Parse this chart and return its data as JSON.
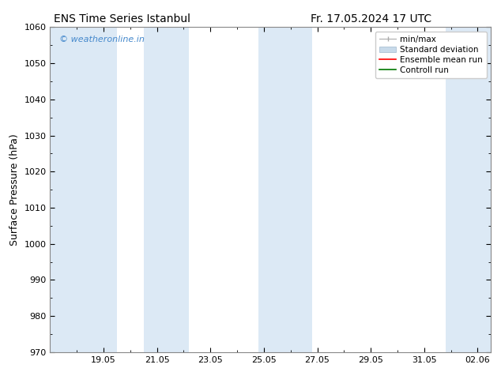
{
  "title1": "ENS Time Series Istanbul",
  "title2": "Fr. 17.05.2024 17 UTC",
  "ylabel": "Surface Pressure (hPa)",
  "ylim": [
    970,
    1060
  ],
  "yticks": [
    970,
    980,
    990,
    1000,
    1010,
    1020,
    1030,
    1040,
    1050,
    1060
  ],
  "xlim": [
    0,
    16.5
  ],
  "xtick_labels": [
    "19.05",
    "21.05",
    "23.05",
    "25.05",
    "27.05",
    "29.05",
    "31.05",
    "02.06"
  ],
  "xtick_positions": [
    2,
    4,
    6,
    8,
    10,
    12,
    14,
    16
  ],
  "shaded_bands": [
    {
      "x_start": 0.0,
      "x_end": 2.5
    },
    {
      "x_start": 3.5,
      "x_end": 5.2
    },
    {
      "x_start": 7.8,
      "x_end": 9.8
    },
    {
      "x_start": 14.8,
      "x_end": 16.5
    }
  ],
  "band_color": "#dce9f5",
  "watermark_text": "© weatheronline.in",
  "watermark_color": "#4488cc",
  "background_color": "#ffffff",
  "title_fontsize": 10,
  "tick_fontsize": 8,
  "ylabel_fontsize": 9,
  "legend_fontsize": 7.5,
  "minmax_color": "#aaaaaa",
  "std_color": "#c8daea",
  "std_edge_color": "#a0b8cc",
  "ens_color": "#ff0000",
  "ctrl_color": "#007700"
}
